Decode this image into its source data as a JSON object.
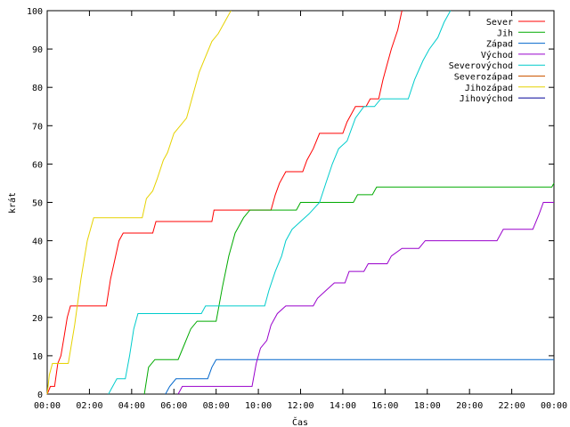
{
  "chart_data": {
    "type": "line",
    "title": "",
    "xlabel": "Čas",
    "ylabel": "krát",
    "xlim": [
      0,
      24
    ],
    "ylim": [
      0,
      100
    ],
    "x_ticks": [
      {
        "v": 0,
        "label": "00:00"
      },
      {
        "v": 2,
        "label": "02:00"
      },
      {
        "v": 4,
        "label": "04:00"
      },
      {
        "v": 6,
        "label": "06:00"
      },
      {
        "v": 8,
        "label": "08:00"
      },
      {
        "v": 10,
        "label": "10:00"
      },
      {
        "v": 12,
        "label": "12:00"
      },
      {
        "v": 14,
        "label": "14:00"
      },
      {
        "v": 16,
        "label": "16:00"
      },
      {
        "v": 18,
        "label": "18:00"
      },
      {
        "v": 20,
        "label": "20:00"
      },
      {
        "v": 22,
        "label": "22:00"
      },
      {
        "v": 24,
        "label": "00:00"
      }
    ],
    "y_ticks": [
      0,
      10,
      20,
      30,
      40,
      50,
      60,
      70,
      80,
      90,
      100
    ],
    "grid": false,
    "legend_position": "top-right",
    "series": [
      {
        "name": "Sever",
        "color": "#ff0000",
        "points": [
          [
            0,
            0
          ],
          [
            0.15,
            2
          ],
          [
            0.35,
            2
          ],
          [
            0.5,
            8
          ],
          [
            0.65,
            10
          ],
          [
            0.8,
            15
          ],
          [
            0.95,
            20
          ],
          [
            1.1,
            23
          ],
          [
            2.8,
            23
          ],
          [
            3.0,
            30
          ],
          [
            3.2,
            35
          ],
          [
            3.4,
            40
          ],
          [
            3.6,
            42
          ],
          [
            5.0,
            42
          ],
          [
            5.15,
            45
          ],
          [
            7.8,
            45
          ],
          [
            7.9,
            48
          ],
          [
            10.6,
            48
          ],
          [
            10.8,
            52
          ],
          [
            11.0,
            55
          ],
          [
            11.3,
            58
          ],
          [
            12.1,
            58
          ],
          [
            12.3,
            61
          ],
          [
            12.6,
            64
          ],
          [
            12.9,
            68
          ],
          [
            14.0,
            68
          ],
          [
            14.2,
            71
          ],
          [
            14.6,
            75
          ],
          [
            15.1,
            75
          ],
          [
            15.3,
            77
          ],
          [
            15.7,
            77
          ],
          [
            15.9,
            82
          ],
          [
            16.1,
            86
          ],
          [
            16.3,
            90
          ],
          [
            16.6,
            95
          ],
          [
            16.8,
            100
          ]
        ]
      },
      {
        "name": "Jih",
        "color": "#00aa00",
        "points": [
          [
            4.6,
            0
          ],
          [
            4.8,
            7
          ],
          [
            5.1,
            9
          ],
          [
            6.2,
            9
          ],
          [
            6.5,
            13
          ],
          [
            6.8,
            17
          ],
          [
            7.1,
            19
          ],
          [
            8.0,
            19
          ],
          [
            8.3,
            28
          ],
          [
            8.6,
            36
          ],
          [
            8.9,
            42
          ],
          [
            9.3,
            46
          ],
          [
            9.6,
            48
          ],
          [
            11.8,
            48
          ],
          [
            12.0,
            50
          ],
          [
            14.5,
            50
          ],
          [
            14.7,
            52
          ],
          [
            15.4,
            52
          ],
          [
            15.6,
            54
          ],
          [
            23.9,
            54
          ],
          [
            24.0,
            55
          ]
        ]
      },
      {
        "name": "Západ",
        "color": "#0066cc",
        "points": [
          [
            5.6,
            0
          ],
          [
            5.8,
            2
          ],
          [
            6.1,
            4
          ],
          [
            7.6,
            4
          ],
          [
            7.8,
            7
          ],
          [
            8.0,
            9
          ],
          [
            24.0,
            9
          ]
        ]
      },
      {
        "name": "Východ",
        "color": "#9900cc",
        "points": [
          [
            6.2,
            0
          ],
          [
            6.4,
            2
          ],
          [
            9.7,
            2
          ],
          [
            9.9,
            8
          ],
          [
            10.1,
            12
          ],
          [
            10.4,
            14
          ],
          [
            10.6,
            18
          ],
          [
            10.9,
            21
          ],
          [
            11.3,
            23
          ],
          [
            12.6,
            23
          ],
          [
            12.8,
            25
          ],
          [
            13.2,
            27
          ],
          [
            13.6,
            29
          ],
          [
            14.1,
            29
          ],
          [
            14.3,
            32
          ],
          [
            15.0,
            32
          ],
          [
            15.2,
            34
          ],
          [
            16.1,
            34
          ],
          [
            16.3,
            36
          ],
          [
            16.8,
            38
          ],
          [
            17.6,
            38
          ],
          [
            17.9,
            40
          ],
          [
            21.3,
            40
          ],
          [
            21.6,
            43
          ],
          [
            23.0,
            43
          ],
          [
            23.3,
            47
          ],
          [
            23.5,
            50
          ],
          [
            24.0,
            50
          ]
        ]
      },
      {
        "name": "Severovýchod",
        "color": "#00cccc",
        "points": [
          [
            2.9,
            0
          ],
          [
            3.1,
            2
          ],
          [
            3.3,
            4
          ],
          [
            3.7,
            4
          ],
          [
            3.9,
            10
          ],
          [
            4.1,
            17
          ],
          [
            4.3,
            21
          ],
          [
            7.3,
            21
          ],
          [
            7.5,
            23
          ],
          [
            10.3,
            23
          ],
          [
            10.5,
            27
          ],
          [
            10.8,
            32
          ],
          [
            11.1,
            36
          ],
          [
            11.3,
            40
          ],
          [
            11.6,
            43
          ],
          [
            12.0,
            45
          ],
          [
            12.4,
            47
          ],
          [
            12.9,
            50
          ],
          [
            13.2,
            55
          ],
          [
            13.5,
            60
          ],
          [
            13.8,
            64
          ],
          [
            14.2,
            66
          ],
          [
            14.6,
            72
          ],
          [
            15.0,
            75
          ],
          [
            15.5,
            75
          ],
          [
            15.8,
            77
          ],
          [
            17.1,
            77
          ],
          [
            17.4,
            82
          ],
          [
            17.8,
            87
          ],
          [
            18.1,
            90
          ],
          [
            18.5,
            93
          ],
          [
            18.8,
            97
          ],
          [
            19.1,
            100
          ]
        ]
      },
      {
        "name": "Severozápad",
        "color": "#cc5500",
        "points": []
      },
      {
        "name": "Jihozápad",
        "color": "#e6d200",
        "points": [
          [
            0,
            0
          ],
          [
            0.1,
            5
          ],
          [
            0.25,
            8
          ],
          [
            1.0,
            8
          ],
          [
            1.3,
            18
          ],
          [
            1.6,
            30
          ],
          [
            1.9,
            40
          ],
          [
            2.2,
            46
          ],
          [
            4.5,
            46
          ],
          [
            4.7,
            51
          ],
          [
            5.0,
            53
          ],
          [
            5.2,
            56
          ],
          [
            5.5,
            61
          ],
          [
            5.7,
            63
          ],
          [
            6.0,
            68
          ],
          [
            6.3,
            70
          ],
          [
            6.6,
            72
          ],
          [
            6.9,
            78
          ],
          [
            7.2,
            84
          ],
          [
            7.5,
            88
          ],
          [
            7.8,
            92
          ],
          [
            8.1,
            94
          ],
          [
            8.4,
            97
          ],
          [
            8.7,
            100
          ]
        ]
      },
      {
        "name": "Jihovýchod",
        "color": "#000099",
        "points": []
      }
    ]
  }
}
